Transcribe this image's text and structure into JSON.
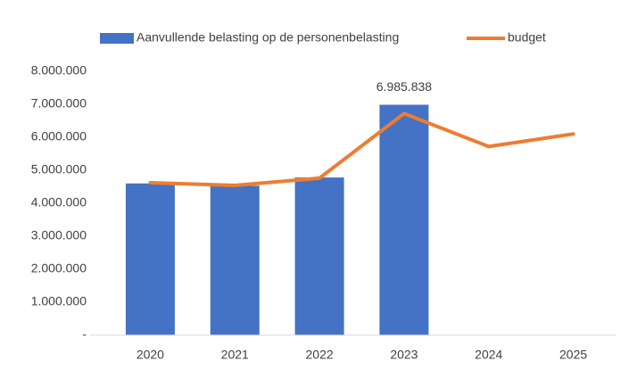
{
  "chart_data": {
    "type": "bar",
    "categories": [
      "2020",
      "2021",
      "2022",
      "2023",
      "2024",
      "2025"
    ],
    "series": [
      {
        "name": "Aanvullende belasting op de personenbelasting",
        "type": "bar",
        "color": "#4472c4",
        "values": [
          4600000,
          4530000,
          4780000,
          6985838,
          null,
          null
        ],
        "value_labels": [
          null,
          null,
          null,
          "6.985.838",
          null,
          null
        ]
      },
      {
        "name": "budget",
        "type": "line",
        "color": "#ed7d31",
        "values": [
          4620000,
          4540000,
          4760000,
          6720000,
          5720000,
          6100000
        ]
      }
    ],
    "ylim": [
      0,
      8000000
    ],
    "yticks": [
      {
        "value": 0,
        "label": "-"
      },
      {
        "value": 1000000,
        "label": "1.000.000"
      },
      {
        "value": 2000000,
        "label": "2.000.000"
      },
      {
        "value": 3000000,
        "label": "3.000.000"
      },
      {
        "value": 4000000,
        "label": "4.000.000"
      },
      {
        "value": 5000000,
        "label": "5.000.000"
      },
      {
        "value": 6000000,
        "label": "6.000.000"
      },
      {
        "value": 7000000,
        "label": "7.000.000"
      },
      {
        "value": 8000000,
        "label": "8.000.000"
      }
    ],
    "grid": false,
    "legend": "top"
  }
}
